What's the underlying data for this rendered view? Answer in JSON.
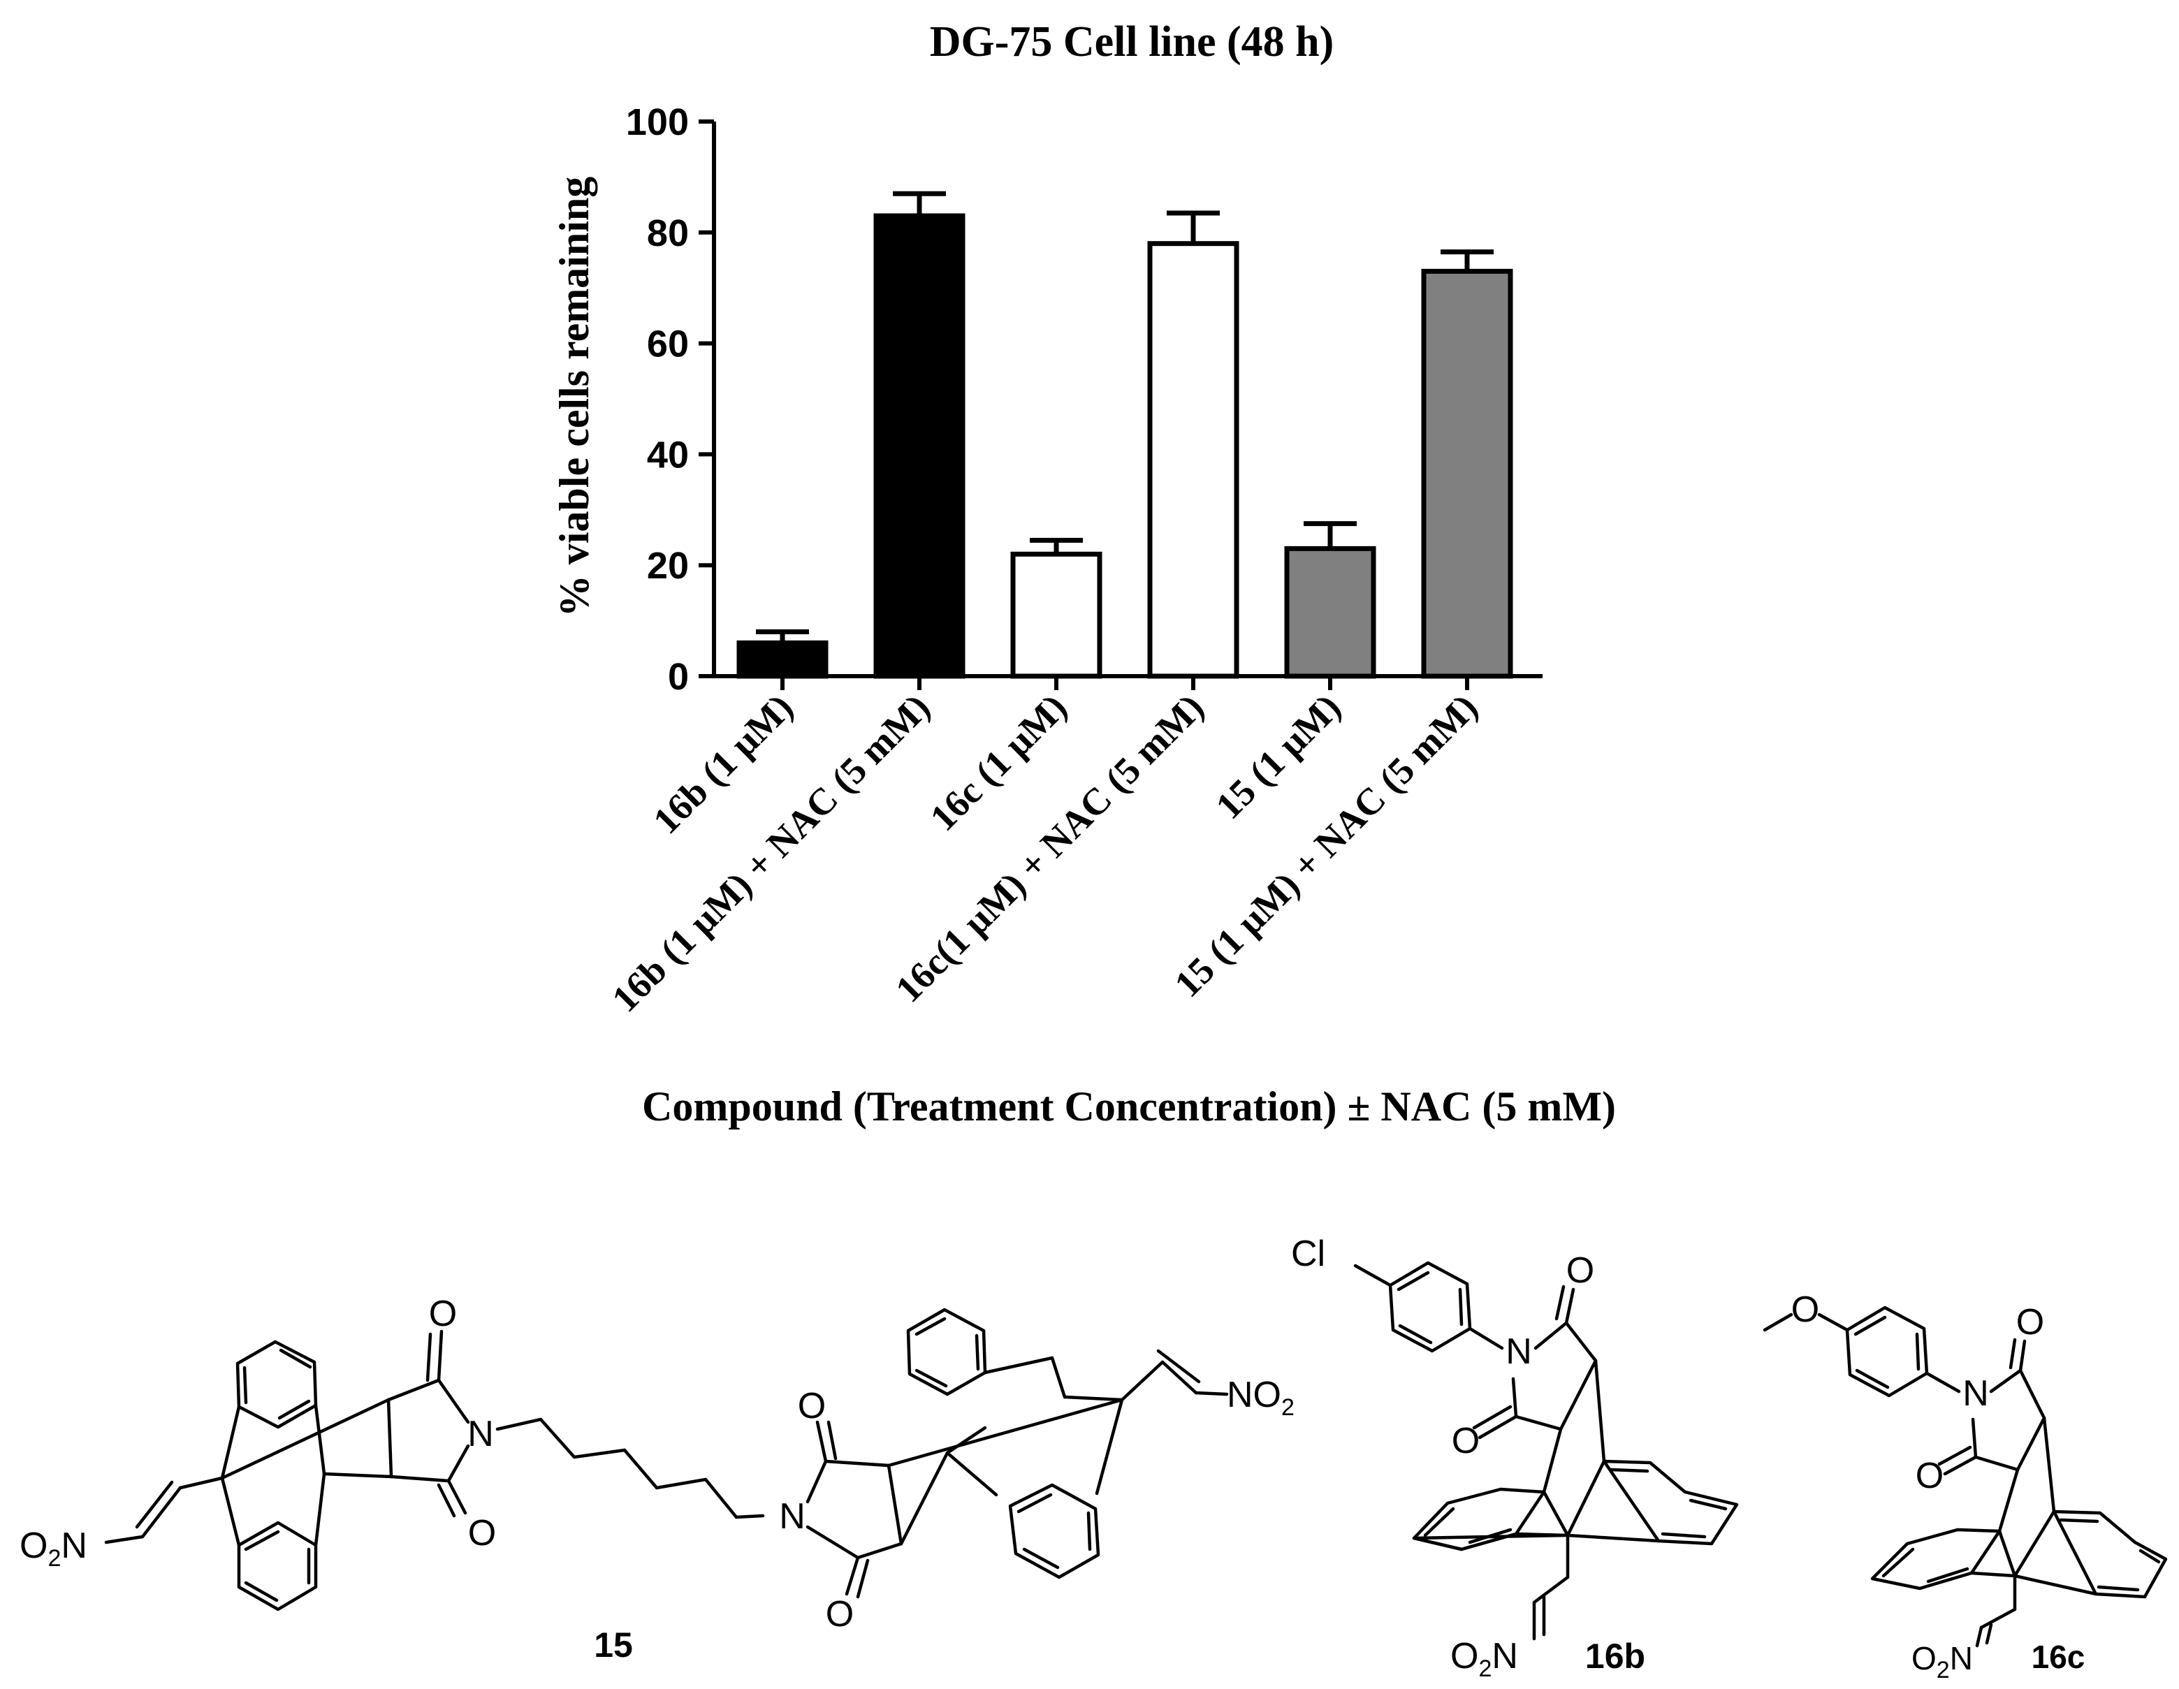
{
  "chart_data": {
    "type": "bar",
    "title": "DG-75 Cell line (48 h)",
    "xlabel": "Compound (Treatment Concentration) ± NAC (5 mM)",
    "ylabel": "% viable cells remaining",
    "ylim": [
      0,
      100
    ],
    "yticks": [
      "0",
      "20",
      "40",
      "60",
      "80",
      "100"
    ],
    "categories": [
      "16b (1 μM)",
      "16b (1 μM) + NAC (5 mM)",
      "16c (1 μM)",
      "16c(1 μM) + NAC (5 mM)",
      "15 (1 μM)",
      "15 (1 μM) + NAC (5 mM)"
    ],
    "values": [
      6,
      83,
      22,
      78,
      23,
      73
    ],
    "error_upper": [
      8,
      87,
      24.5,
      83.5,
      27.5,
      76.5
    ],
    "bar_colors": [
      "#000000",
      "#000000",
      "#ffffff",
      "#ffffff",
      "#808080",
      "#808080"
    ],
    "grid": false,
    "legend": "none"
  },
  "structures": {
    "labels": [
      "15",
      "16b",
      "16c"
    ],
    "atoms": {
      "o": "O",
      "n": "N",
      "no2": "NO",
      "no2_sub": "2",
      "o2n_o": "O",
      "o2n_sub": "2",
      "o2n_n": "N",
      "cl": "Cl"
    },
    "icons": [
      "structure-15-drawing",
      "structure-16b-drawing",
      "structure-16c-drawing"
    ]
  }
}
